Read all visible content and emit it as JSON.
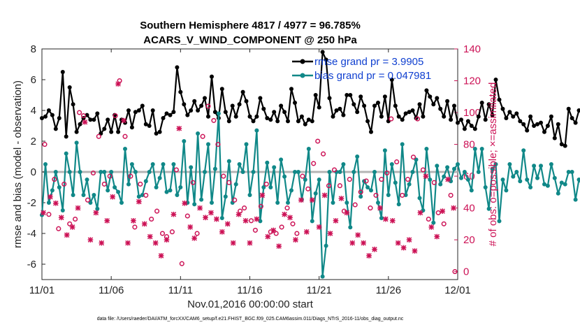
{
  "chart_data": {
    "type": "line",
    "title": "Southern Hemisphere 4817 / 4977 = 96.785%",
    "subtitle": "ACARS_V_WIND_COMPONENT @ 250 hPa",
    "xlabel": "Nov.01,2016 00:00:00 start",
    "ylabel": "rmse and bias (model - observation)",
    "y2label": "# of obs: o=possible; ×=assimilated",
    "footnote": "data file: /Users/raeder/DAI/ATM_forcXX/CAM6_setup/f.e21.FHIST_BGC.f09_025.CAM6assim.011/Diags_NTrS_2016-11/obs_diag_output.nc",
    "x_range": [
      0,
      30
    ],
    "ylim": [
      -7,
      8
    ],
    "y2lim": [
      -5,
      140
    ],
    "x_ticks": [
      {
        "value": 0,
        "label": "11/01"
      },
      {
        "value": 5,
        "label": "11/06"
      },
      {
        "value": 10,
        "label": "11/11"
      },
      {
        "value": 15,
        "label": "11/16"
      },
      {
        "value": 20,
        "label": "11/21"
      },
      {
        "value": 25,
        "label": "11/26"
      },
      {
        "value": 30,
        "label": "12/01"
      }
    ],
    "y_ticks": [
      {
        "value": -6,
        "label": "-6"
      },
      {
        "value": -4,
        "label": "-4"
      },
      {
        "value": -2,
        "label": "-2"
      },
      {
        "value": 0,
        "label": "0"
      },
      {
        "value": 2,
        "label": "2"
      },
      {
        "value": 4,
        "label": "4"
      },
      {
        "value": 6,
        "label": "6"
      },
      {
        "value": 8,
        "label": "8"
      }
    ],
    "y2_ticks": [
      {
        "value": 0,
        "label": "0"
      },
      {
        "value": 20,
        "label": "20"
      },
      {
        "value": 40,
        "label": "40"
      },
      {
        "value": 60,
        "label": "60"
      },
      {
        "value": 80,
        "label": "80"
      },
      {
        "value": 100,
        "label": "100"
      },
      {
        "value": 120,
        "label": "120"
      },
      {
        "value": 140,
        "label": "140"
      }
    ],
    "zero_line": 0,
    "series": [
      {
        "name": "rmse",
        "legend": "rmse grand pr = 3.9905",
        "color": "#000000",
        "axis": "left",
        "x_start": 0,
        "x_step": 0.25,
        "values": [
          3.5,
          3.6,
          4.0,
          3.7,
          2.8,
          3.5,
          6.5,
          2.3,
          5.5,
          4.4,
          2.6,
          3.1,
          3.5,
          3.7,
          3.4,
          3.4,
          3.8,
          2.5,
          2.8,
          3.4,
          2.6,
          3.7,
          2.6,
          3.4,
          3.2,
          4.0,
          2.9,
          3.9,
          4.0,
          4.3,
          3.1,
          3.0,
          4.0,
          2.5,
          2.6,
          3.5,
          3.8,
          3.7,
          3.9,
          6.8,
          5.2,
          4.4,
          3.7,
          4.0,
          4.6,
          4.0,
          4.3,
          4.8,
          3.6,
          6.2,
          3.9,
          3.5,
          5.4,
          3.9,
          3.3,
          4.3,
          3.6,
          4.4,
          5.2,
          4.6,
          3.6,
          3.3,
          3.6,
          4.8,
          4.1,
          3.5,
          3.4,
          3.9,
          3.3,
          4.3,
          3.9,
          3.3,
          5.4,
          4.5,
          3.3,
          3.6,
          3.1,
          3.4,
          3.3,
          5.0,
          4.2,
          7.8,
          7.3,
          4.8,
          3.6,
          4.0,
          4.1,
          3.7,
          5.0,
          5.0,
          4.4,
          3.9,
          4.9,
          4.3,
          3.3,
          2.6,
          4.3,
          4.5,
          3.6,
          4.9,
          3.3,
          6.0,
          4.3,
          3.6,
          3.4,
          3.8,
          3.9,
          4.0,
          3.5,
          4.4,
          3.6,
          5.3,
          4.9,
          4.4,
          4.8,
          4.1,
          3.6,
          4.6,
          3.4,
          4.3,
          3.2,
          3.4,
          2.8,
          3.3,
          3.0,
          2.8,
          3.6,
          4.5,
          3.4,
          4.4,
          3.7,
          6.0,
          4.7,
          4.1,
          3.5,
          3.9,
          3.6,
          3.8,
          3.3,
          3.1,
          2.7,
          3.6,
          3.0,
          3.1,
          3.2,
          2.6,
          3.0,
          3.6,
          2.2,
          3.1,
          1.8,
          1.7,
          4.1,
          3.5,
          3.2,
          4.0,
          3.9,
          3.8,
          3.9,
          3.8,
          4.0,
          4.2
        ]
      },
      {
        "name": "bias",
        "legend": "bias grand pr = 0.047981",
        "color": "#108888",
        "axis": "left",
        "x_start": 0,
        "x_step": 0.25,
        "values": [
          -2.8,
          0.5,
          -2.0,
          -1.2,
          0.0,
          -1.0,
          -2.5,
          1.2,
          0.0,
          -1.5,
          1.9,
          0.0,
          -1.5,
          -0.5,
          -2.0,
          -1.5,
          -2.4,
          0.0,
          0.0,
          -1.2,
          0.0,
          -1.0,
          -1.3,
          -2.0,
          1.5,
          -0.8,
          0.5,
          0.0,
          -1.6,
          -1.5,
          -0.6,
          0.0,
          0.5,
          -1.0,
          -0.4,
          0.5,
          -1.3,
          -1.2,
          0.5,
          -1.5,
          -1.0,
          2.0,
          -2.0,
          0.3,
          -2.1,
          2.5,
          -1.8,
          0.0,
          1.8,
          -2.0,
          0.2,
          3.8,
          -3.0,
          -1.6,
          0.7,
          -2.0,
          -0.8,
          0.5,
          0.0,
          1.8,
          -1.5,
          0.0,
          2.7,
          -3.2,
          -1.0,
          0.6,
          -1.0,
          0.3,
          -2.0,
          0.8,
          -0.3,
          -2.0,
          -1.2,
          0.0,
          0.0,
          -1.8,
          -0.5,
          1.5,
          -3.2,
          -1.4,
          -0.5,
          -6.8,
          -4.8,
          0.0,
          -2.0,
          0.0,
          0.0,
          0.5,
          -2.0,
          -3.6,
          0.0,
          1.0,
          -1.6,
          -0.6,
          -1.0,
          -1.2,
          0.0,
          -2.0,
          -3.0,
          1.4,
          -1.5,
          0.5,
          -0.7,
          -2.1,
          1.8,
          -1.5,
          -0.8,
          0.0,
          0.8,
          -1.7,
          -2.5,
          1.5,
          -0.5,
          -3.3,
          0.4,
          -0.8,
          -0.3,
          0.3,
          -0.6,
          0.2,
          0.5,
          -0.4,
          0.0,
          -0.5,
          -1.2,
          1.5,
          0.0,
          1.5,
          -1.0,
          -2.4,
          0.2,
          0.5,
          -3.2,
          -0.5,
          -1.2,
          0.5,
          -0.3,
          0.0,
          -0.6,
          1.4,
          -0.5,
          -1.0,
          0.4,
          -0.4,
          0.4,
          -0.8,
          -0.9,
          0.5,
          -0.4,
          -1.4,
          -0.7,
          -0.8,
          0.0,
          0.0,
          -1.8,
          -0.5,
          -0.9,
          -0.7,
          -0.4,
          -1.0,
          0.0,
          -0.8,
          -1.2,
          0.5
        ]
      },
      {
        "name": "possible",
        "legend": "o",
        "color": "#cc1155",
        "axis": "right",
        "points": [
          [
            0.2,
            80
          ],
          [
            0.5,
            36
          ],
          [
            0.9,
            58
          ],
          [
            1.2,
            27
          ],
          [
            1.6,
            55
          ],
          [
            2.0,
            30
          ],
          [
            2.4,
            33
          ],
          [
            2.7,
            100
          ],
          [
            3.0,
            98
          ],
          [
            3.3,
            45
          ],
          [
            3.7,
            62
          ],
          [
            4.1,
            85
          ],
          [
            4.5,
            55
          ],
          [
            4.9,
            60
          ],
          [
            5.3,
            98
          ],
          [
            5.6,
            120
          ],
          [
            6.0,
            85
          ],
          [
            6.4,
            60
          ],
          [
            6.7,
            28
          ],
          [
            7.1,
            55
          ],
          [
            7.5,
            48
          ],
          [
            7.9,
            33
          ],
          [
            8.3,
            38
          ],
          [
            8.7,
            24
          ],
          [
            9.0,
            22
          ],
          [
            9.4,
            25
          ],
          [
            9.7,
            64
          ],
          [
            10.1,
            5
          ],
          [
            10.5,
            35
          ],
          [
            10.9,
            56
          ],
          [
            11.2,
            24
          ],
          [
            11.6,
            85
          ],
          [
            12.0,
            104
          ],
          [
            12.4,
            95
          ],
          [
            12.7,
            80
          ],
          [
            13.1,
            60
          ],
          [
            13.5,
            56
          ],
          [
            13.9,
            45
          ],
          [
            14.3,
            38
          ],
          [
            14.6,
            40
          ],
          [
            15.1,
            32
          ],
          [
            15.4,
            26
          ],
          [
            15.8,
            41
          ],
          [
            16.2,
            55
          ],
          [
            16.5,
            25
          ],
          [
            16.9,
            24
          ],
          [
            17.3,
            28
          ],
          [
            17.7,
            40
          ],
          [
            18.1,
            30
          ],
          [
            18.4,
            24
          ],
          [
            18.8,
            60
          ],
          [
            19.2,
            52
          ],
          [
            19.6,
            68
          ],
          [
            19.9,
            82
          ],
          [
            20.3,
            74
          ],
          [
            20.7,
            54
          ],
          [
            21.1,
            64
          ],
          [
            21.5,
            54
          ],
          [
            21.8,
            38
          ],
          [
            22.2,
            58
          ],
          [
            22.6,
            42
          ],
          [
            23.0,
            50
          ],
          [
            23.4,
            57
          ],
          [
            23.7,
            40
          ],
          [
            24.1,
            48
          ],
          [
            24.5,
            58
          ],
          [
            24.9,
            62
          ],
          [
            25.2,
            96
          ],
          [
            25.6,
            69
          ],
          [
            26.0,
            48
          ],
          [
            26.4,
            58
          ],
          [
            26.8,
            72
          ],
          [
            27.1,
            96
          ],
          [
            27.5,
            64
          ],
          [
            27.9,
            33
          ],
          [
            28.3,
            56
          ],
          [
            28.6,
            37
          ],
          [
            29.0,
            30
          ],
          [
            29.5,
            48
          ],
          [
            29.8,
            0
          ]
        ]
      },
      {
        "name": "assimilated",
        "legend": "×",
        "color": "#cc1155",
        "axis": "right",
        "points": [
          [
            0.1,
            37
          ],
          [
            0.6,
            47
          ],
          [
            1.0,
            43
          ],
          [
            1.4,
            34
          ],
          [
            1.8,
            23
          ],
          [
            2.2,
            28
          ],
          [
            2.6,
            40
          ],
          [
            3.1,
            94
          ],
          [
            3.5,
            20
          ],
          [
            3.9,
            37
          ],
          [
            4.3,
            18
          ],
          [
            4.7,
            32
          ],
          [
            5.1,
            47
          ],
          [
            5.5,
            118
          ],
          [
            5.9,
            95
          ],
          [
            6.2,
            18
          ],
          [
            6.6,
            32
          ],
          [
            7.0,
            44
          ],
          [
            7.4,
            30
          ],
          [
            7.8,
            22
          ],
          [
            8.2,
            18
          ],
          [
            8.6,
            10
          ],
          [
            9.0,
            20
          ],
          [
            9.5,
            36
          ],
          [
            9.9,
            90
          ],
          [
            10.3,
            43
          ],
          [
            10.7,
            28
          ],
          [
            11.0,
            21
          ],
          [
            11.4,
            40
          ],
          [
            11.8,
            34
          ],
          [
            12.2,
            37
          ],
          [
            12.6,
            33
          ],
          [
            13.0,
            25
          ],
          [
            13.4,
            30
          ],
          [
            13.8,
            18
          ],
          [
            14.2,
            36
          ],
          [
            14.7,
            32
          ],
          [
            15.0,
            18
          ],
          [
            15.5,
            33
          ],
          [
            15.9,
            48
          ],
          [
            16.3,
            22
          ],
          [
            16.7,
            26
          ],
          [
            17.1,
            16
          ],
          [
            17.5,
            36
          ],
          [
            17.9,
            34
          ],
          [
            18.3,
            20
          ],
          [
            18.7,
            45
          ],
          [
            19.1,
            25
          ],
          [
            19.5,
            45
          ],
          [
            20.0,
            28
          ],
          [
            20.4,
            48
          ],
          [
            20.8,
            24
          ],
          [
            21.2,
            32
          ],
          [
            21.6,
            46
          ],
          [
            22.0,
            37
          ],
          [
            22.4,
            18
          ],
          [
            22.8,
            23
          ],
          [
            23.2,
            18
          ],
          [
            23.6,
            10
          ],
          [
            24.0,
            14
          ],
          [
            24.4,
            40
          ],
          [
            24.8,
            33
          ],
          [
            25.3,
            32
          ],
          [
            25.7,
            18
          ],
          [
            26.1,
            15
          ],
          [
            26.5,
            20
          ],
          [
            26.9,
            13
          ],
          [
            27.3,
            37
          ],
          [
            27.7,
            60
          ],
          [
            28.1,
            28
          ],
          [
            28.5,
            22
          ],
          [
            28.9,
            38
          ],
          [
            29.3,
            58
          ],
          [
            29.7,
            40
          ]
        ]
      }
    ]
  }
}
